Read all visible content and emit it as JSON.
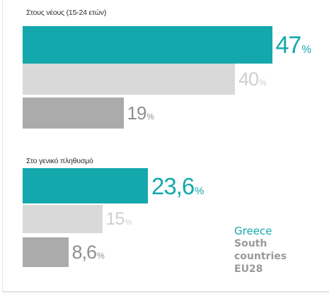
{
  "colors": {
    "greece": "#14a8ad",
    "south": "#d9d9d9",
    "eu": "#ababab",
    "label_greece": "#14a8ad",
    "label_south": "#cfcfcf",
    "label_eu": "#8f8f8f"
  },
  "chart_data": [
    {
      "type": "bar",
      "orientation": "horizontal",
      "title": "Στους νέους (15-24 ετών)",
      "categories": [
        "Greece",
        "South countries",
        "EU28"
      ],
      "values": [
        47,
        40,
        19
      ],
      "value_labels": [
        "47",
        "40",
        "19"
      ],
      "unit": "%",
      "xlim": [
        0,
        50
      ]
    },
    {
      "type": "bar",
      "orientation": "horizontal",
      "title": "Στο γενικό πληθυσμό",
      "categories": [
        "Greece",
        "South countries",
        "EU28"
      ],
      "values": [
        23.6,
        15,
        8.6
      ],
      "value_labels": [
        "23,6",
        "15",
        "8,6"
      ],
      "unit": "%",
      "xlim": [
        0,
        50
      ]
    }
  ],
  "legend": {
    "greece": "Greece",
    "south_line1": "South",
    "south_line2": "countries",
    "eu": "EU28"
  }
}
